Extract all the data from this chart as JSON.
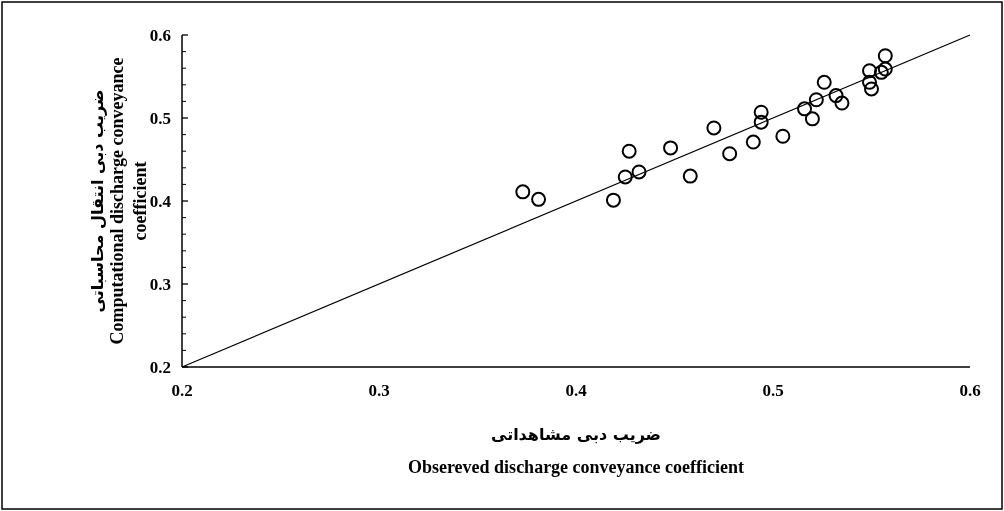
{
  "chart_data": {
    "type": "scatter",
    "xlabel": "Obsereved discharge conveyance coefficient",
    "ylabel": "Computational discharge conveyance coefficient",
    "annotations": [
      "ضریب دبی مشاهداتی",
      "ضریب دبی انتقال محاسباتی"
    ],
    "xlim": [
      0.2,
      0.6
    ],
    "ylim": [
      0.2,
      0.6
    ],
    "xticks": [
      0.2,
      0.3,
      0.4,
      0.5,
      0.6
    ],
    "yticks": [
      0.2,
      0.3,
      0.4,
      0.5,
      0.6
    ],
    "marker": "circle",
    "series": [
      {
        "color": "#000000",
        "x": [
          0.373,
          0.381,
          0.419,
          0.425,
          0.427,
          0.432,
          0.448,
          0.458,
          0.47,
          0.478,
          0.49,
          0.494,
          0.494,
          0.505,
          0.516,
          0.52,
          0.522,
          0.526,
          0.532,
          0.535,
          0.549,
          0.549,
          0.55,
          0.555,
          0.557,
          0.557
        ],
        "values": [
          0.411,
          0.402,
          0.401,
          0.429,
          0.46,
          0.435,
          0.464,
          0.43,
          0.488,
          0.457,
          0.471,
          0.507,
          0.495,
          0.478,
          0.511,
          0.499,
          0.522,
          0.543,
          0.527,
          0.518,
          0.557,
          0.543,
          0.535,
          0.555,
          0.559,
          0.575
        ]
      },
      {
        "type": "line",
        "color": "#000000",
        "marker": "none",
        "x": [
          0.2,
          0.6
        ],
        "values": [
          0.2,
          0.6
        ]
      }
    ]
  }
}
